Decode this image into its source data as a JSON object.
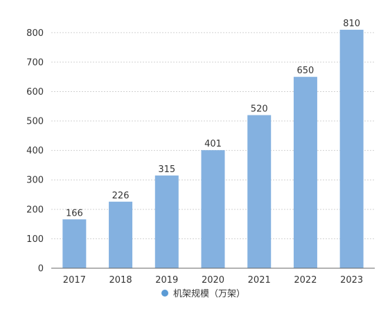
{
  "chart_data": {
    "type": "bar",
    "categories": [
      "2017",
      "2018",
      "2019",
      "2020",
      "2021",
      "2022",
      "2023"
    ],
    "series": [
      {
        "name": "机架规模（万架）",
        "values": [
          166,
          226,
          315,
          401,
          520,
          650,
          810
        ]
      }
    ],
    "data_labels": [
      "166",
      "226",
      "315",
      "401",
      "520",
      "650",
      "810"
    ],
    "yticks": [
      0,
      100,
      200,
      300,
      400,
      500,
      600,
      700,
      800
    ],
    "ytick_labels": [
      "0",
      "100",
      "200",
      "300",
      "400",
      "500",
      "600",
      "700",
      "800"
    ],
    "ylim": [
      0,
      850
    ],
    "grid": "horizontal dashed",
    "legend_position": "bottom-center",
    "colors": {
      "bar": "#84B1E0",
      "legend_marker": "#5B9BD5",
      "grid": "#D0D0D0",
      "axis": "#666666",
      "text": "#333333"
    }
  }
}
